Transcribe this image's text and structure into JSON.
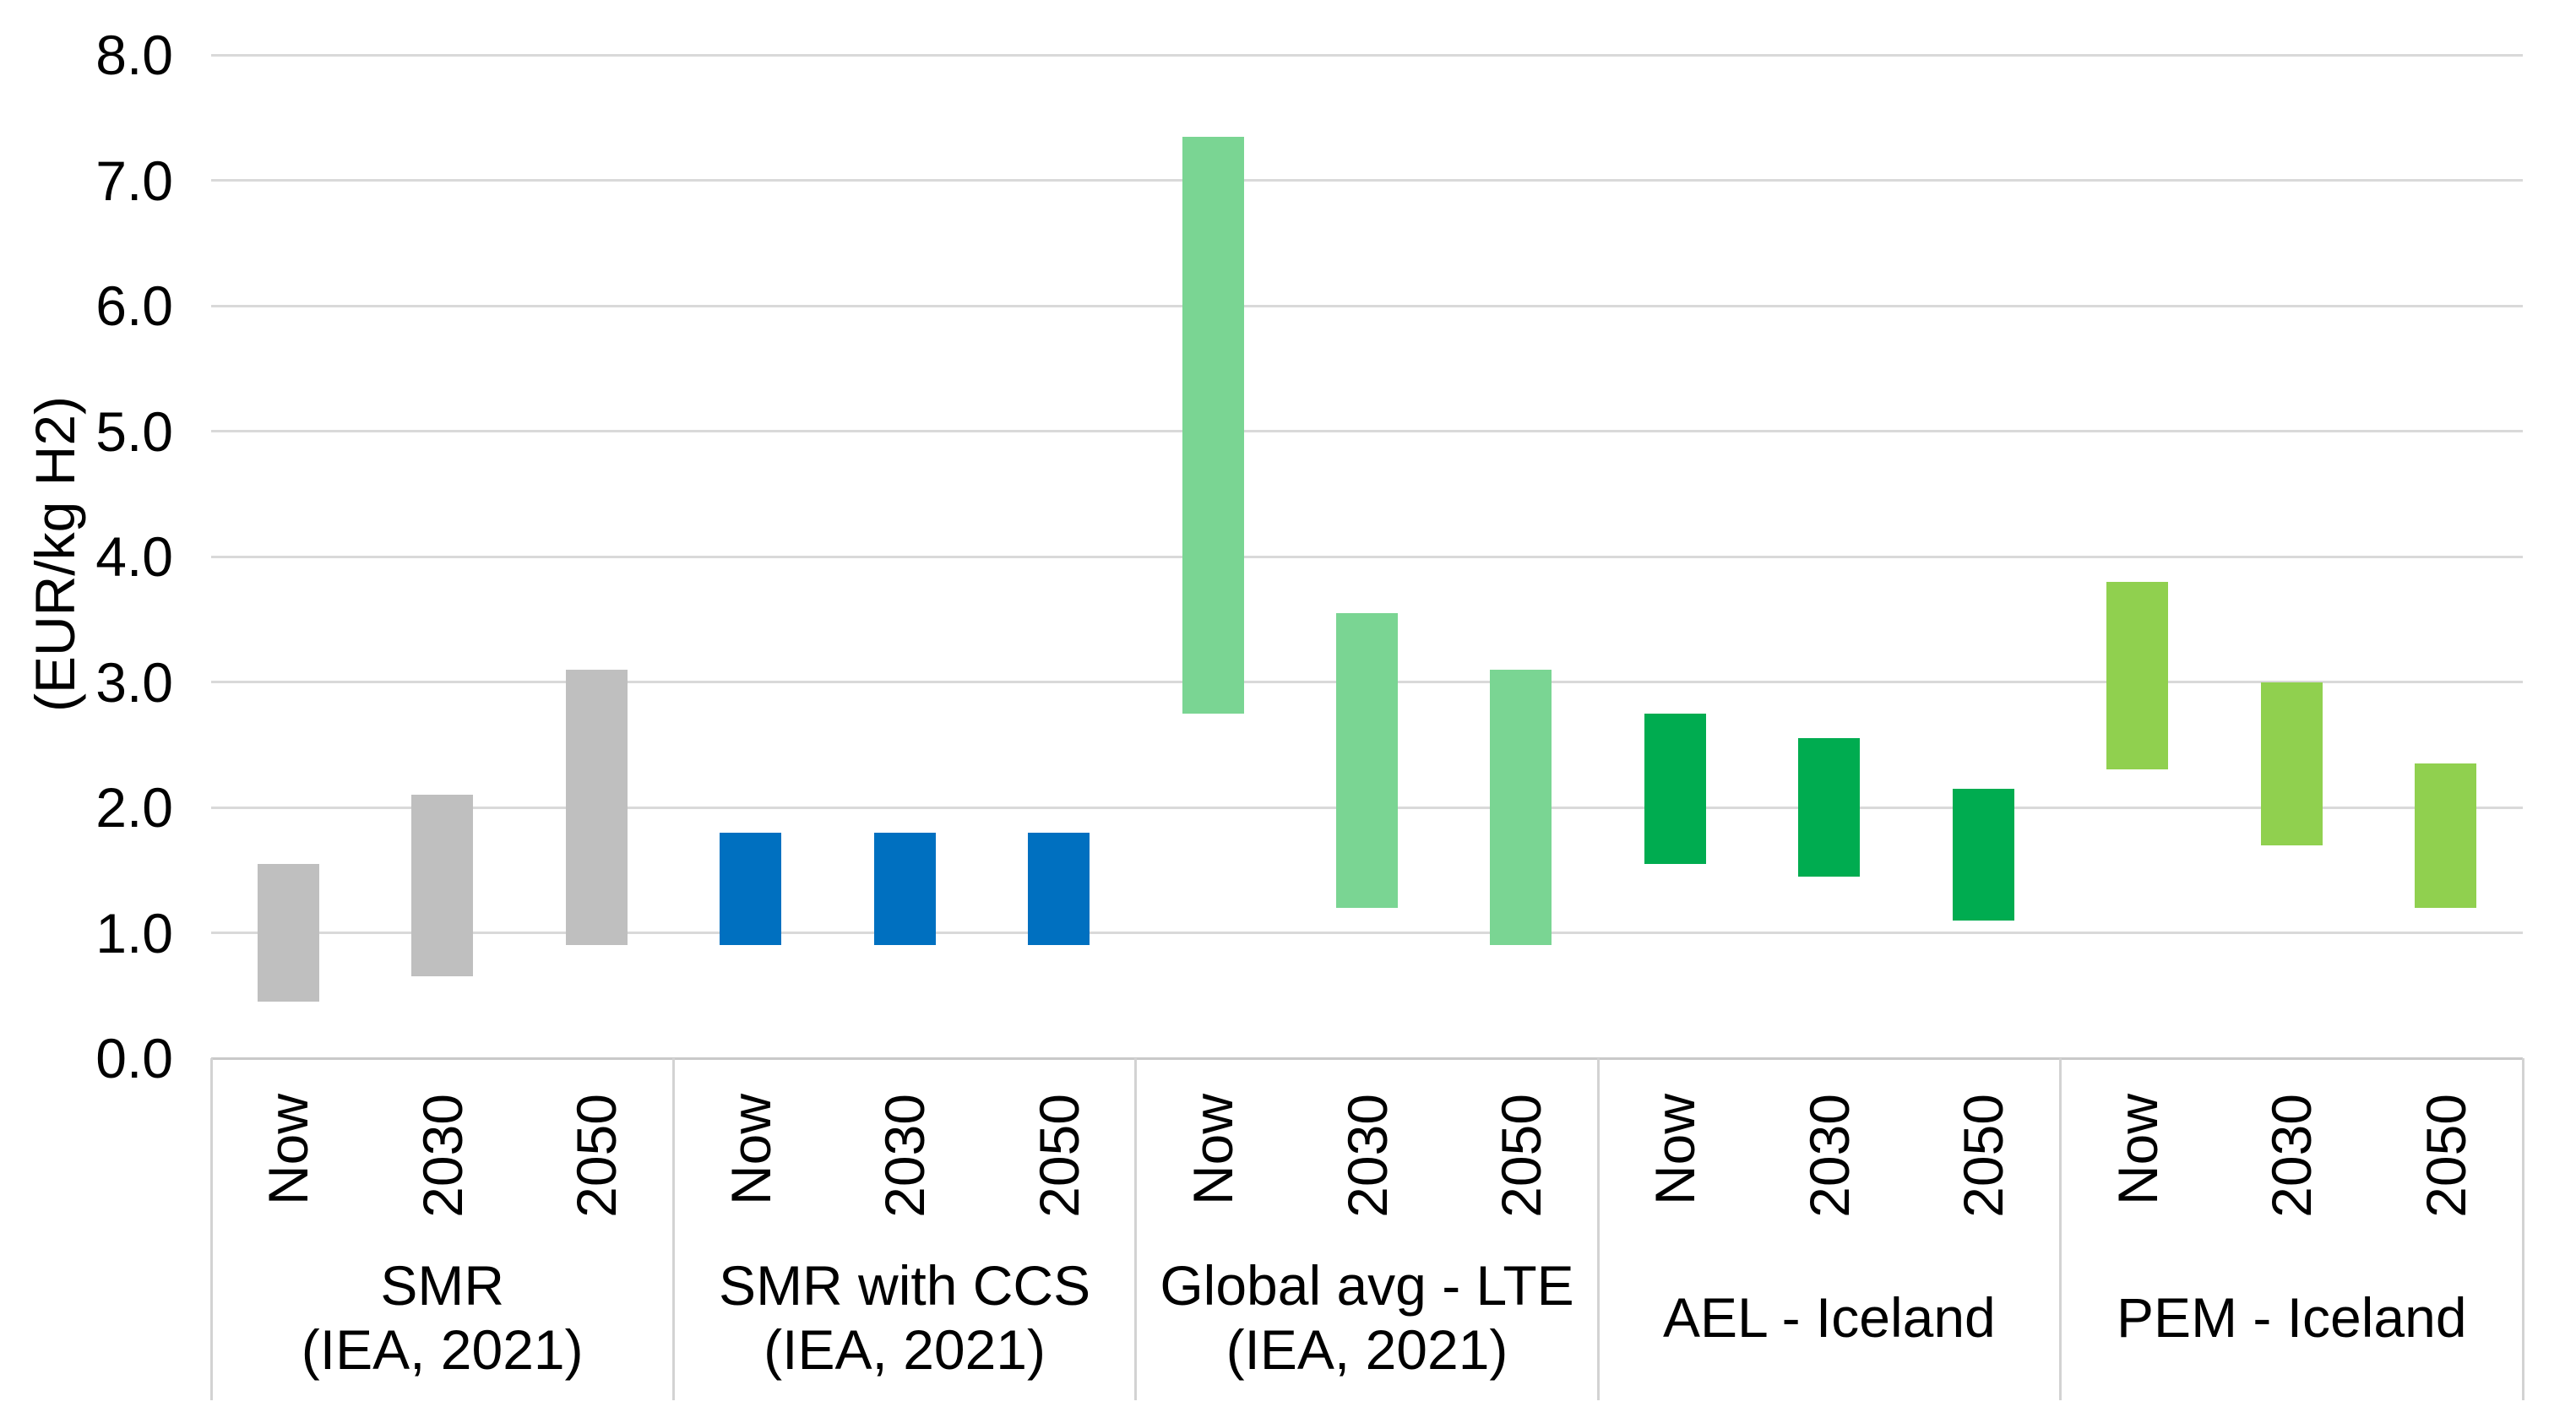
{
  "chart_data": {
    "type": "bar",
    "subtype": "floating-range-columns",
    "title": "",
    "xlabel": "",
    "ylabel": "(EUR/kg H2)",
    "ylim": [
      0,
      8
    ],
    "ytick_step": 1.0,
    "ytick_labels": [
      "0.0",
      "1.0",
      "2.0",
      "3.0",
      "4.0",
      "5.0",
      "6.0",
      "7.0",
      "8.0"
    ],
    "grid": true,
    "legend_position": "none",
    "periods": [
      "Now",
      "2030",
      "2050"
    ],
    "groups": [
      {
        "name": "SMR (IEA, 2021)",
        "label_lines": [
          "SMR",
          "(IEA, 2021)"
        ],
        "color": "#BFBFBF",
        "bars": [
          {
            "period": "Now",
            "low": 0.45,
            "high": 1.55
          },
          {
            "period": "2030",
            "low": 0.65,
            "high": 2.1
          },
          {
            "period": "2050",
            "low": 0.9,
            "high": 3.1
          }
        ]
      },
      {
        "name": "SMR with CCS (IEA, 2021)",
        "label_lines": [
          "SMR with CCS",
          "(IEA, 2021)"
        ],
        "color": "#0070C0",
        "bars": [
          {
            "period": "Now",
            "low": 0.9,
            "high": 1.8
          },
          {
            "period": "2030",
            "low": 0.9,
            "high": 1.8
          },
          {
            "period": "2050",
            "low": 0.9,
            "high": 1.8
          }
        ]
      },
      {
        "name": "Global avg - LTE (IEA, 2021)",
        "label_lines": [
          "Global avg - LTE",
          "(IEA, 2021)"
        ],
        "color": "#7AD593",
        "bars": [
          {
            "period": "Now",
            "low": 2.75,
            "high": 7.35
          },
          {
            "period": "2030",
            "low": 1.2,
            "high": 3.55
          },
          {
            "period": "2050",
            "low": 0.9,
            "high": 3.1
          }
        ]
      },
      {
        "name": "AEL - Iceland",
        "label_lines": [
          "AEL - Iceland"
        ],
        "color": "#00AC50",
        "bars": [
          {
            "period": "Now",
            "low": 1.55,
            "high": 2.75
          },
          {
            "period": "2030",
            "low": 1.45,
            "high": 2.55
          },
          {
            "period": "2050",
            "low": 1.1,
            "high": 2.15
          }
        ]
      },
      {
        "name": "PEM - Iceland",
        "label_lines": [
          "PEM - Iceland"
        ],
        "color": "#90D04F",
        "bars": [
          {
            "period": "Now",
            "low": 2.3,
            "high": 3.8
          },
          {
            "period": "2030",
            "low": 1.7,
            "high": 3.0
          },
          {
            "period": "2050",
            "low": 1.2,
            "high": 2.35
          }
        ]
      }
    ],
    "colors": {
      "gridline": "#D9D9D9",
      "axis_line": "#C9C9C9",
      "separator": "#D3D3D3",
      "text": "#000000",
      "background": "#FFFFFF"
    }
  }
}
